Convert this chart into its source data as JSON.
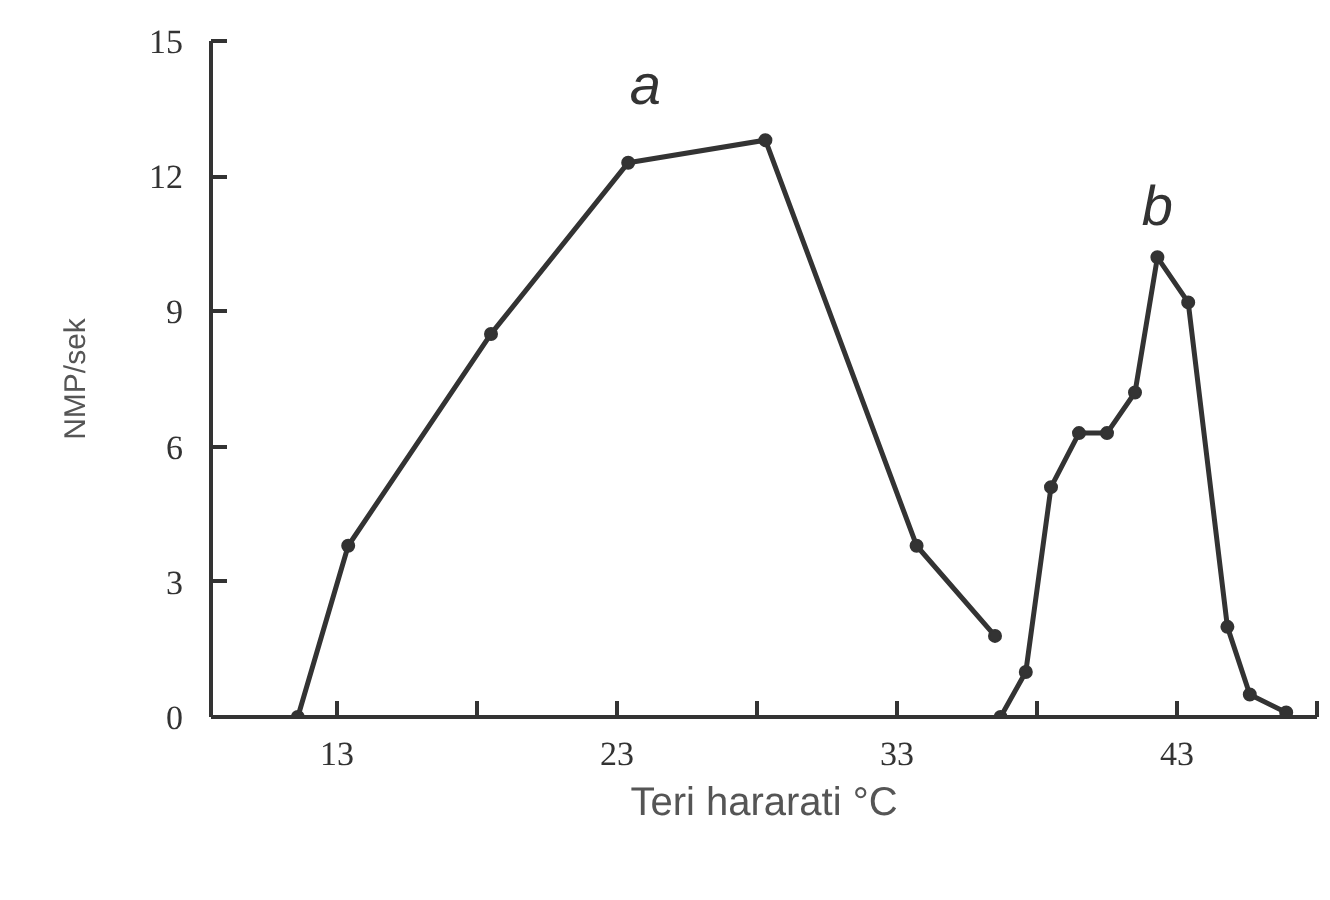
{
  "chart_data": {
    "type": "line",
    "xlabel": "Teri hararati °C",
    "ylabel": "NMP/sek",
    "xlim": [
      8.5,
      48
    ],
    "ylim": [
      0,
      15
    ],
    "xticks": [
      13,
      {
        "value": 18,
        "label": null
      },
      23,
      {
        "value": 28,
        "label": null
      },
      33,
      {
        "value": 38,
        "label": null
      },
      43,
      {
        "value": 48,
        "label": null
      }
    ],
    "yticks": [
      0,
      3,
      6,
      9,
      12,
      15
    ],
    "grid": false,
    "marker": "circle",
    "line_style": "solid",
    "series": [
      {
        "name": "a",
        "color": "#333333",
        "x": [
          11.6,
          13.4,
          18.5,
          23.4,
          28.3,
          33.7,
          36.5
        ],
        "values": [
          0,
          3.8,
          8.5,
          12.3,
          12.8,
          3.8,
          1.8
        ]
      },
      {
        "name": "b",
        "color": "#333333",
        "x": [
          36.7,
          37.6,
          38.5,
          39.5,
          40.5,
          41.5,
          42.3,
          43.4,
          44.8,
          45.6,
          46.9
        ],
        "values": [
          0,
          1.0,
          5.1,
          6.3,
          6.3,
          7.2,
          10.2,
          9.2,
          2.0,
          0.5,
          0.1
        ]
      }
    ]
  }
}
